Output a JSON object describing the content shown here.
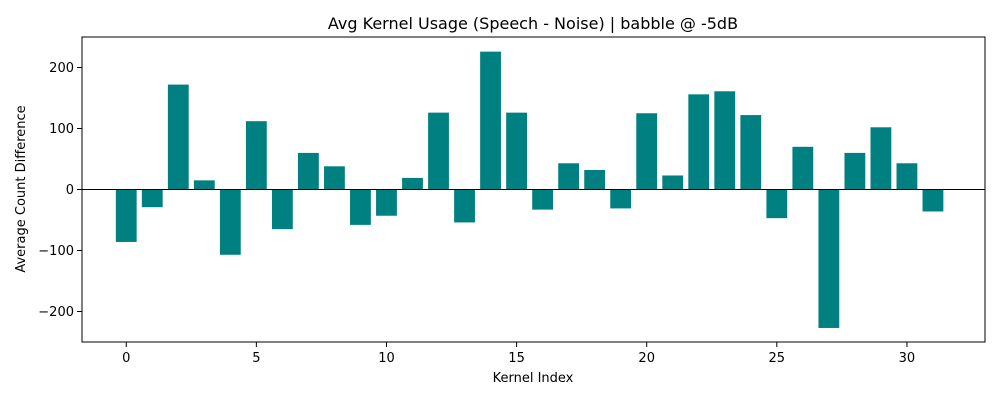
{
  "chart_data": {
    "type": "bar",
    "title": "Avg Kernel Usage (Speech - Noise) | babble @ -5dB",
    "xlabel": "Kernel Index",
    "ylabel": "Average Count Difference",
    "x": [
      0,
      1,
      2,
      3,
      4,
      5,
      6,
      7,
      8,
      9,
      10,
      11,
      12,
      13,
      14,
      15,
      16,
      17,
      18,
      19,
      20,
      21,
      22,
      23,
      24,
      25,
      26,
      27,
      28,
      29,
      30,
      31
    ],
    "values": [
      -86,
      -29,
      172,
      15,
      -107,
      112,
      -65,
      60,
      38,
      -58,
      -43,
      19,
      126,
      -54,
      226,
      126,
      -33,
      43,
      32,
      -31,
      125,
      23,
      156,
      161,
      122,
      -47,
      70,
      -227,
      60,
      102,
      43,
      -36
    ],
    "xlim": [
      -1.7,
      33.0
    ],
    "ylim": [
      -250,
      250
    ],
    "x_ticks": [
      0,
      5,
      10,
      15,
      20,
      25,
      30
    ],
    "y_ticks": [
      -200,
      -100,
      0,
      100,
      200
    ],
    "y_tick_labels": [
      "−200",
      "−100",
      "0",
      "100",
      "200"
    ],
    "bar_color": "#008080",
    "grid": false,
    "zero_line": true
  }
}
